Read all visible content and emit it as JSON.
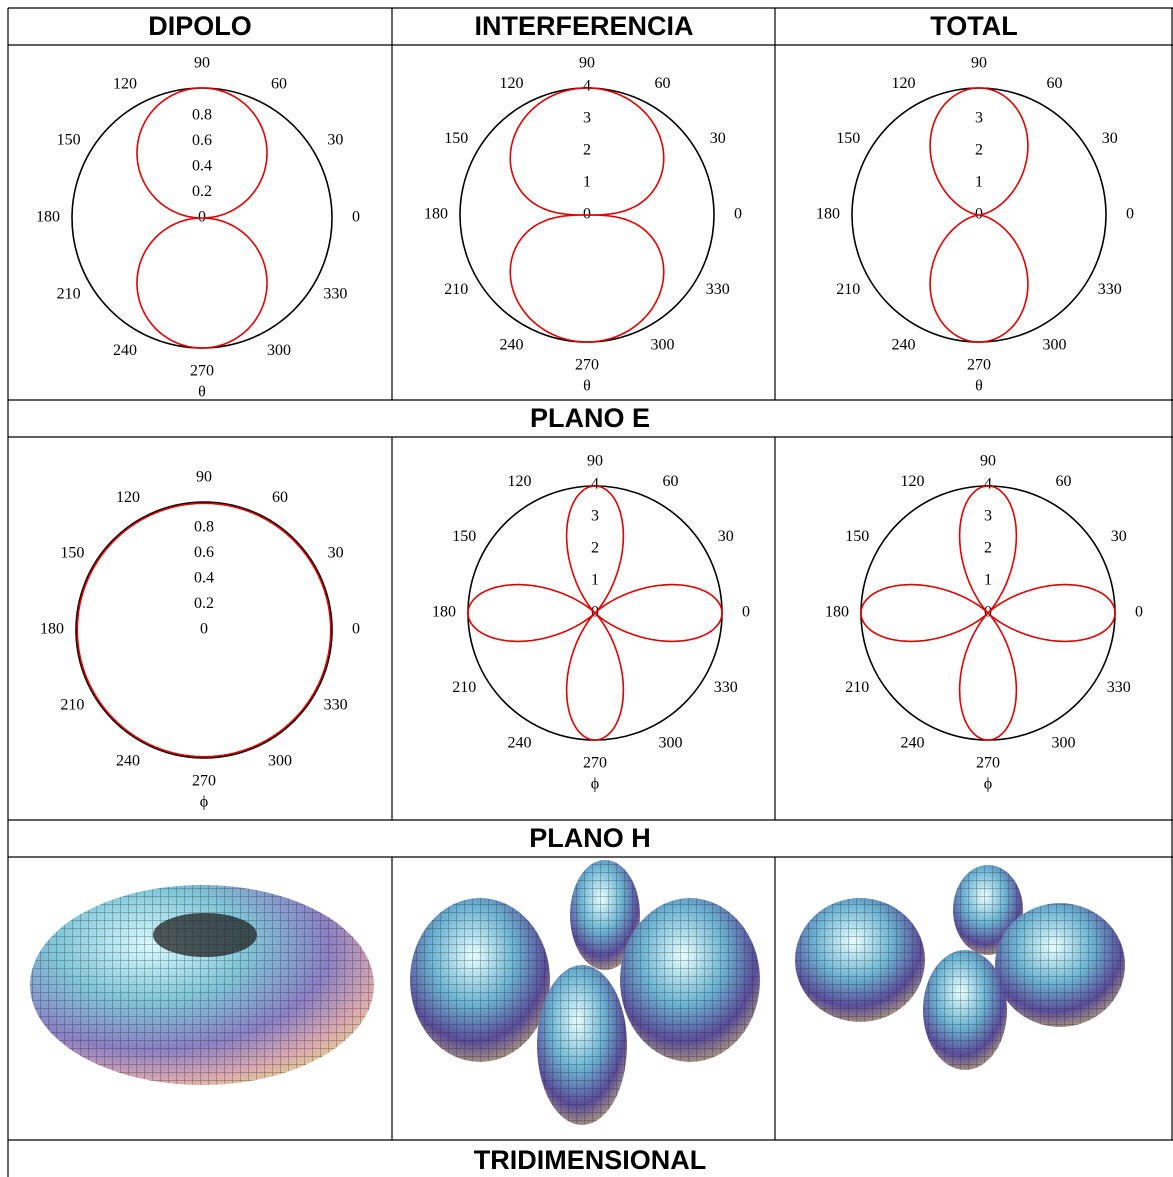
{
  "header": {
    "columns": [
      "DIPOLO",
      "INTERFERENCIA",
      "TOTAL"
    ]
  },
  "sections": [
    {
      "label": "PLANO E",
      "plots": [
        {
          "angle_labels": [
            0,
            30,
            60,
            90,
            120,
            150,
            180,
            210,
            240,
            270,
            300,
            330
          ],
          "radial_labels": [
            0.8,
            0.6,
            0.4,
            0.2,
            0
          ],
          "variable": "θ"
        },
        {
          "angle_labels": [
            0,
            30,
            60,
            90,
            120,
            150,
            180,
            210,
            240,
            270,
            300,
            330
          ],
          "radial_labels": [
            4,
            3,
            2,
            1,
            0
          ],
          "variable": "θ"
        },
        {
          "angle_labels": [
            0,
            30,
            60,
            90,
            120,
            150,
            180,
            210,
            240,
            270,
            300,
            330
          ],
          "radial_labels": [
            3,
            2,
            1,
            0
          ],
          "variable": "θ"
        }
      ]
    },
    {
      "label": "PLANO H",
      "plots": [
        {
          "angle_labels": [
            0,
            30,
            60,
            90,
            120,
            150,
            180,
            210,
            240,
            270,
            300,
            330
          ],
          "radial_labels": [
            0.8,
            0.6,
            0.4,
            0.2,
            0
          ],
          "variable": "ϕ"
        },
        {
          "angle_labels": [
            0,
            30,
            60,
            90,
            120,
            150,
            180,
            210,
            240,
            270,
            300,
            330
          ],
          "radial_labels": [
            4,
            3,
            2,
            1,
            0
          ],
          "variable": "ϕ"
        },
        {
          "angle_labels": [
            0,
            30,
            60,
            90,
            120,
            150,
            180,
            210,
            240,
            270,
            300,
            330
          ],
          "radial_labels": [
            4,
            3,
            2,
            1,
            0
          ],
          "variable": "ϕ"
        }
      ]
    },
    {
      "label": "TRIDIMENSIONAL"
    }
  ]
}
